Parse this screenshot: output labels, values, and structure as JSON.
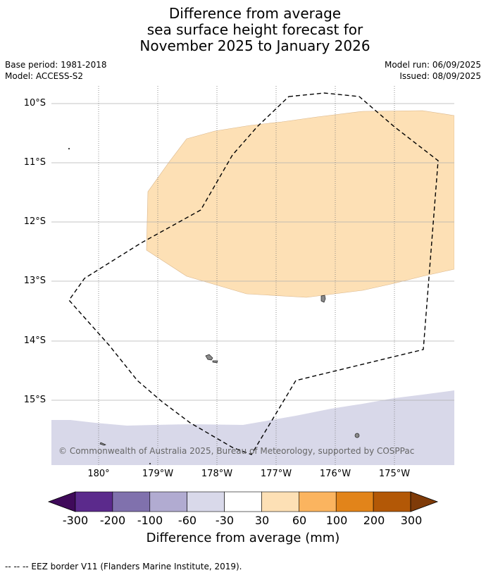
{
  "title": {
    "line1": "Difference from average",
    "line2": "sea surface height forecast for",
    "line3": "November 2025 to January 2026"
  },
  "meta_left": {
    "base_period": "Base period: 1981-2018",
    "model": "Model: ACCESS-S2"
  },
  "meta_right": {
    "model_run": "Model run: 06/09/2025",
    "issued": "Issued: 08/09/2025"
  },
  "map": {
    "lat_labels": [
      "10°S",
      "11°S",
      "12°S",
      "13°S",
      "14°S",
      "15°S"
    ],
    "lon_labels": [
      "180°",
      "179°W",
      "178°W",
      "177°W",
      "176°W",
      "175°W"
    ],
    "copyright": "© Commonwealth of Australia 2025, Bureau of Meteorology, supported by COSPPac"
  },
  "colorbar": {
    "ticks": [
      "-300",
      "-200",
      "-100",
      "-60",
      "-30",
      "30",
      "60",
      "100",
      "200",
      "300"
    ],
    "colors": [
      "#3f0a5a",
      "#5b2a8c",
      "#8071ad",
      "#b1abd1",
      "#d9d9ea",
      "#ffffff",
      "#fde0b5",
      "#fbb45f",
      "#e2841a",
      "#b35806",
      "#7f3b08"
    ],
    "title": "Difference from average (mm)"
  },
  "footer": "--  --  -- EEZ border V11 (Flanders Marine Institute, 2019)."
}
